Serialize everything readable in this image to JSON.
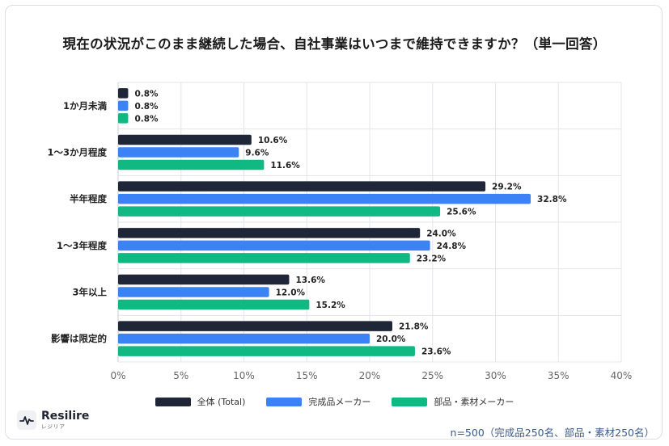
{
  "title": "現在の状況がこのまま継続した場合、自社事業はいつまで維持できますか？（単一回答）",
  "footnote": "n=500（完成品250名、部品・素材250名）",
  "brand": {
    "name": "Resilire",
    "sub": "レジリア",
    "icon": "pulse-wave-icon"
  },
  "colors": {
    "total": "#1f2638",
    "finished": "#3b82f6",
    "parts": "#10b981"
  },
  "chart_data": {
    "type": "bar",
    "orientation": "horizontal",
    "categories": [
      "1か月未満",
      "1〜3か月程度",
      "半年程度",
      "1〜3年程度",
      "3年以上",
      "影響は限定的"
    ],
    "series": [
      {
        "name": "全体 (Total)",
        "values": [
          0.8,
          10.6,
          29.2,
          24.0,
          13.6,
          21.8
        ],
        "labels": [
          "0.8%",
          "10.6%",
          "29.2%",
          "24.0%",
          "13.6%",
          "21.8%"
        ]
      },
      {
        "name": "完成品メーカー",
        "values": [
          0.8,
          9.6,
          32.8,
          24.8,
          12.0,
          20.0
        ],
        "labels": [
          "0.8%",
          "9.6%",
          "32.8%",
          "24.8%",
          "12.0%",
          "20.0%"
        ]
      },
      {
        "name": "部品・素材メーカー",
        "values": [
          0.8,
          11.6,
          25.6,
          23.2,
          15.2,
          23.6
        ],
        "labels": [
          "0.8%",
          "11.6%",
          "25.6%",
          "23.2%",
          "15.2%",
          "23.6%"
        ]
      }
    ],
    "xlim": [
      0,
      40
    ],
    "xticks": [
      "0%",
      "5%",
      "10%",
      "15%",
      "20%",
      "25%",
      "30%",
      "35%",
      "40%"
    ],
    "unit": "%",
    "grid": true,
    "legend_position": "bottom"
  }
}
